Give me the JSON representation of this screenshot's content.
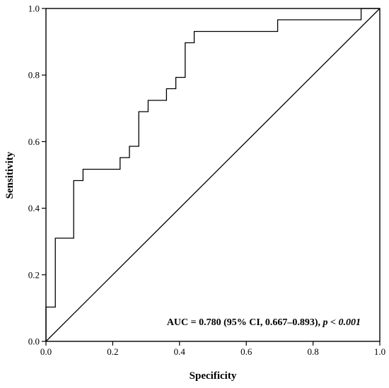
{
  "chart_data": {
    "type": "line",
    "xlabel": "Specificity",
    "ylabel": "Sensitivity",
    "xlim": [
      0,
      1
    ],
    "ylim": [
      0,
      1
    ],
    "x_ticks": [
      "0.0",
      "0.2",
      "0.4",
      "0.6",
      "0.8",
      "1.0"
    ],
    "y_ticks": [
      "0.0",
      "0.2",
      "0.4",
      "0.6",
      "0.8",
      "1.0"
    ],
    "grid": false,
    "annotation": {
      "text_main": "AUC = 0.780 (95% CI, 0.667–0.893),",
      "text_p": "p",
      "text_rest": "< 0.001"
    },
    "series": [
      {
        "style": "step",
        "x": [
          0.0,
          0.0,
          0.028,
          0.028,
          0.083,
          0.083,
          0.111,
          0.111,
          0.222,
          0.222,
          0.25,
          0.25,
          0.278,
          0.278,
          0.306,
          0.306,
          0.361,
          0.361,
          0.389,
          0.389,
          0.417,
          0.417,
          0.444,
          0.444,
          0.694,
          0.694,
          0.944,
          0.944,
          1.0
        ],
        "y": [
          0.0,
          0.103,
          0.103,
          0.31,
          0.31,
          0.483,
          0.483,
          0.517,
          0.517,
          0.552,
          0.552,
          0.586,
          0.586,
          0.69,
          0.69,
          0.724,
          0.724,
          0.759,
          0.759,
          0.793,
          0.793,
          0.897,
          0.897,
          0.931,
          0.931,
          0.966,
          0.966,
          1.0,
          1.0
        ]
      },
      {
        "style": "diagonal",
        "x": [
          0,
          1
        ],
        "y": [
          0,
          1
        ]
      }
    ]
  }
}
